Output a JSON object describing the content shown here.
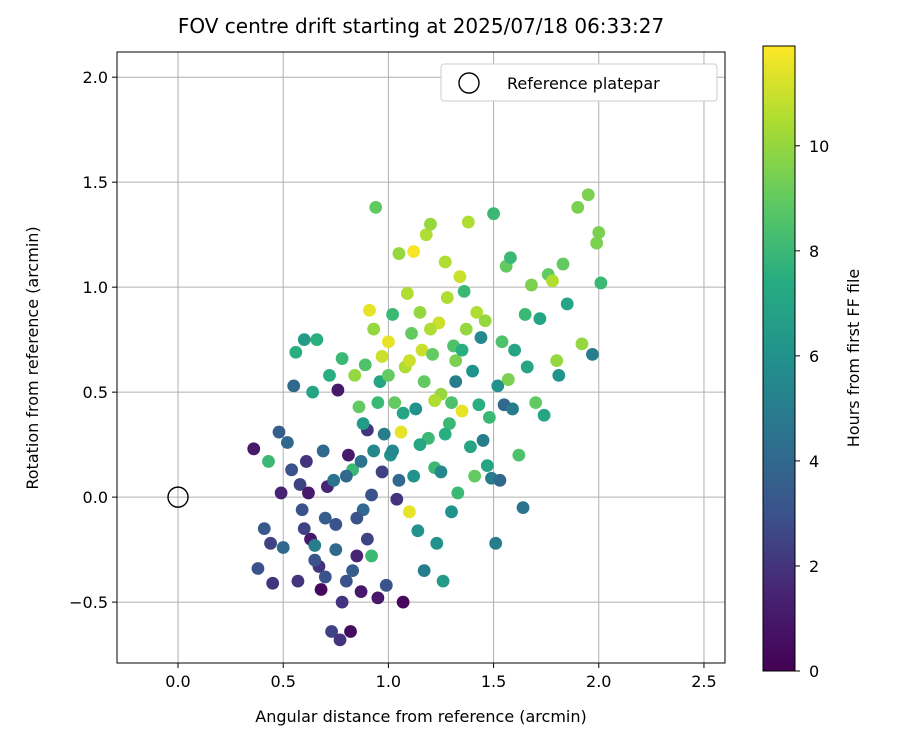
{
  "chart_data": {
    "type": "scatter",
    "title": "FOV centre drift starting at 2025/07/18 06:33:27",
    "xlabel": "Angular distance from reference (arcmin)",
    "ylabel": "Rotation from reference (arcmin)",
    "xlim": [
      -0.29,
      2.6
    ],
    "ylim": [
      -0.79,
      2.12
    ],
    "x_ticks": [
      0.0,
      0.5,
      1.0,
      1.5,
      2.0,
      2.5
    ],
    "x_tick_labels": [
      "0.0",
      "0.5",
      "1.0",
      "1.5",
      "2.0",
      "2.5"
    ],
    "y_ticks": [
      -0.5,
      0.0,
      0.5,
      1.0,
      1.5,
      2.0
    ],
    "y_tick_labels": [
      "−0.5",
      "0.0",
      "0.5",
      "1.0",
      "1.5",
      "2.0"
    ],
    "grid": true,
    "legend": {
      "placement": "top-right",
      "entries": [
        {
          "label": "Reference platepar",
          "marker": "open-circle"
        }
      ]
    },
    "reference_point": {
      "x": 0.0,
      "y": 0.0
    },
    "colorbar": {
      "label": "Hours from first FF file",
      "colormap": "viridis",
      "range": [
        0,
        11.9
      ],
      "ticks": [
        0,
        2,
        4,
        6,
        8,
        10
      ],
      "tick_labels": [
        "0",
        "2",
        "4",
        "6",
        "8",
        "10"
      ]
    },
    "series": [
      {
        "color_by": "hours_from_first_ff",
        "points": [
          [
            0.36,
            0.23,
            1.0
          ],
          [
            0.38,
            -0.34,
            3.0
          ],
          [
            0.41,
            -0.15,
            3.3
          ],
          [
            0.43,
            0.17,
            8.0
          ],
          [
            0.44,
            -0.22,
            2.5
          ],
          [
            0.45,
            -0.41,
            2.0
          ],
          [
            0.48,
            0.31,
            3.5
          ],
          [
            0.49,
            0.02,
            1.5
          ],
          [
            0.5,
            -0.24,
            4.0
          ],
          [
            0.52,
            0.26,
            4.0
          ],
          [
            0.54,
            0.13,
            3.0
          ],
          [
            0.55,
            0.53,
            4.0
          ],
          [
            0.56,
            0.69,
            7.5
          ],
          [
            0.57,
            -0.4,
            2.0
          ],
          [
            0.58,
            0.06,
            2.5
          ],
          [
            0.59,
            -0.06,
            3.0
          ],
          [
            0.6,
            0.75,
            6.5
          ],
          [
            0.61,
            0.17,
            2.0
          ],
          [
            0.62,
            0.02,
            1.0
          ],
          [
            0.63,
            -0.2,
            1.0
          ],
          [
            0.64,
            0.5,
            7.0
          ],
          [
            0.65,
            -0.23,
            5.0
          ],
          [
            0.66,
            0.75,
            7.5
          ],
          [
            0.67,
            -0.33,
            2.0
          ],
          [
            0.68,
            -0.44,
            0.3
          ],
          [
            0.69,
            0.22,
            4.0
          ],
          [
            0.7,
            -0.38,
            3.0
          ],
          [
            0.71,
            0.05,
            1.5
          ],
          [
            0.72,
            0.58,
            7.5
          ],
          [
            0.73,
            -0.64,
            2.5
          ],
          [
            0.74,
            0.08,
            4.5
          ],
          [
            0.75,
            -0.13,
            3.0
          ],
          [
            0.76,
            0.51,
            1.0
          ],
          [
            0.77,
            -0.68,
            2.0
          ],
          [
            0.78,
            0.66,
            8.0
          ],
          [
            0.8,
            -0.4,
            3.0
          ],
          [
            0.81,
            0.2,
            1.0
          ],
          [
            0.82,
            -0.64,
            0.5
          ],
          [
            0.83,
            0.13,
            8.0
          ],
          [
            0.84,
            0.58,
            10.0
          ],
          [
            0.85,
            -0.28,
            1.5
          ],
          [
            0.86,
            0.43,
            9.0
          ],
          [
            0.87,
            -0.45,
            1.0
          ],
          [
            0.88,
            -0.06,
            4.0
          ],
          [
            0.89,
            0.63,
            8.5
          ],
          [
            0.9,
            0.32,
            2.0
          ],
          [
            0.91,
            0.89,
            11.5
          ],
          [
            0.92,
            -0.28,
            8.0
          ],
          [
            0.93,
            0.8,
            10.0
          ],
          [
            0.94,
            1.38,
            9.0
          ],
          [
            0.95,
            -0.48,
            1.0
          ],
          [
            0.96,
            0.55,
            7.0
          ],
          [
            0.97,
            0.67,
            11.0
          ],
          [
            0.98,
            0.3,
            5.0
          ],
          [
            0.99,
            -0.42,
            3.0
          ],
          [
            1.0,
            0.74,
            11.5
          ],
          [
            1.01,
            0.2,
            6.0
          ],
          [
            1.02,
            0.87,
            8.0
          ],
          [
            1.03,
            0.45,
            9.0
          ],
          [
            1.04,
            -0.01,
            2.0
          ],
          [
            1.05,
            1.16,
            10.0
          ],
          [
            1.06,
            0.31,
            11.5
          ],
          [
            1.07,
            -0.5,
            0.3
          ],
          [
            1.08,
            0.62,
            10.5
          ],
          [
            1.09,
            0.97,
            10.5
          ],
          [
            1.1,
            -0.07,
            11.5
          ],
          [
            1.11,
            0.78,
            9.0
          ],
          [
            1.12,
            1.17,
            11.8
          ],
          [
            1.13,
            0.42,
            6.0
          ],
          [
            1.14,
            -0.16,
            6.0
          ],
          [
            1.15,
            0.88,
            10.0
          ],
          [
            1.16,
            0.7,
            11.0
          ],
          [
            1.17,
            -0.35,
            5.0
          ],
          [
            1.18,
            1.25,
            10.5
          ],
          [
            1.19,
            0.28,
            8.0
          ],
          [
            1.2,
            1.3,
            10.0
          ],
          [
            1.21,
            0.68,
            9.0
          ],
          [
            1.22,
            0.14,
            8.0
          ],
          [
            1.23,
            -0.22,
            6.0
          ],
          [
            1.24,
            0.83,
            11.0
          ],
          [
            1.25,
            0.49,
            10.0
          ],
          [
            1.26,
            -0.4,
            6.5
          ],
          [
            1.27,
            1.12,
            10.5
          ],
          [
            1.28,
            0.95,
            10.5
          ],
          [
            1.29,
            0.35,
            8.0
          ],
          [
            1.3,
            -0.07,
            6.0
          ],
          [
            1.31,
            0.72,
            8.5
          ],
          [
            1.32,
            0.55,
            5.0
          ],
          [
            1.33,
            0.02,
            8.0
          ],
          [
            1.34,
            1.05,
            11.0
          ],
          [
            1.35,
            0.41,
            11.5
          ],
          [
            1.36,
            0.98,
            8.0
          ],
          [
            1.37,
            0.8,
            10.0
          ],
          [
            1.38,
            1.31,
            10.5
          ],
          [
            1.39,
            0.24,
            7.0
          ],
          [
            1.4,
            0.6,
            6.0
          ],
          [
            1.41,
            0.1,
            9.0
          ],
          [
            1.42,
            0.88,
            10.5
          ],
          [
            1.43,
            0.44,
            7.5
          ],
          [
            1.44,
            0.76,
            5.5
          ],
          [
            1.45,
            0.27,
            5.0
          ],
          [
            1.46,
            0.84,
            10.0
          ],
          [
            1.47,
            0.15,
            7.0
          ],
          [
            1.48,
            0.38,
            8.0
          ],
          [
            1.49,
            0.09,
            5.0
          ],
          [
            1.5,
            1.35,
            8.0
          ],
          [
            1.51,
            -0.22,
            5.0
          ],
          [
            1.52,
            0.53,
            6.0
          ],
          [
            1.53,
            0.08,
            4.0
          ],
          [
            1.54,
            0.74,
            8.5
          ],
          [
            1.55,
            0.44,
            4.0
          ],
          [
            1.56,
            1.1,
            9.0
          ],
          [
            1.57,
            0.56,
            9.5
          ],
          [
            1.58,
            1.14,
            8.0
          ],
          [
            1.59,
            0.42,
            5.0
          ],
          [
            1.6,
            0.7,
            7.0
          ],
          [
            1.62,
            0.2,
            8.5
          ],
          [
            1.64,
            -0.05,
            4.5
          ],
          [
            1.65,
            0.87,
            8.0
          ],
          [
            1.66,
            0.62,
            7.0
          ],
          [
            1.68,
            1.01,
            9.5
          ],
          [
            1.7,
            0.45,
            9.0
          ],
          [
            1.72,
            0.85,
            7.0
          ],
          [
            1.74,
            0.39,
            7.0
          ],
          [
            1.76,
            1.06,
            9.0
          ],
          [
            1.78,
            1.03,
            10.5
          ],
          [
            1.8,
            0.65,
            10.0
          ],
          [
            1.81,
            0.58,
            6.0
          ],
          [
            1.83,
            1.11,
            9.0
          ],
          [
            1.85,
            0.92,
            7.0
          ],
          [
            1.9,
            1.38,
            9.5
          ],
          [
            1.92,
            0.73,
            10.0
          ],
          [
            1.95,
            1.44,
            9.5
          ],
          [
            1.97,
            0.68,
            5.0
          ],
          [
            1.99,
            1.21,
            9.5
          ],
          [
            2.0,
            1.26,
            9.5
          ],
          [
            2.01,
            1.02,
            8.0
          ],
          [
            0.87,
            0.17,
            4.5
          ],
          [
            0.92,
            0.01,
            3.0
          ],
          [
            0.97,
            0.12,
            2.5
          ],
          [
            1.02,
            0.22,
            5.5
          ],
          [
            1.07,
            0.4,
            7.0
          ],
          [
            1.12,
            0.1,
            6.0
          ],
          [
            1.17,
            0.55,
            9.0
          ],
          [
            1.22,
            0.46,
            10.5
          ],
          [
            1.27,
            0.3,
            7.5
          ],
          [
            1.32,
            0.65,
            9.5
          ],
          [
            1.0,
            0.58,
            9.0
          ],
          [
            1.05,
            0.08,
            4.0
          ],
          [
            1.1,
            0.65,
            11.0
          ],
          [
            1.15,
            0.25,
            7.0
          ],
          [
            1.2,
            0.8,
            10.5
          ],
          [
            1.25,
            0.12,
            5.5
          ],
          [
            1.3,
            0.45,
            8.5
          ],
          [
            1.35,
            0.7,
            7.5
          ],
          [
            0.8,
            0.1,
            4.0
          ],
          [
            0.85,
            -0.1,
            3.0
          ],
          [
            0.9,
            -0.2,
            2.5
          ],
          [
            0.95,
            0.45,
            8.0
          ],
          [
            0.75,
            -0.25,
            4.0
          ],
          [
            0.7,
            -0.1,
            3.5
          ],
          [
            0.65,
            -0.3,
            3.0
          ],
          [
            0.6,
            -0.15,
            2.5
          ],
          [
            0.78,
            -0.5,
            2.0
          ],
          [
            0.83,
            -0.35,
            3.5
          ],
          [
            0.88,
            0.35,
            6.5
          ],
          [
            0.93,
            0.22,
            5.5
          ]
        ]
      }
    ]
  }
}
